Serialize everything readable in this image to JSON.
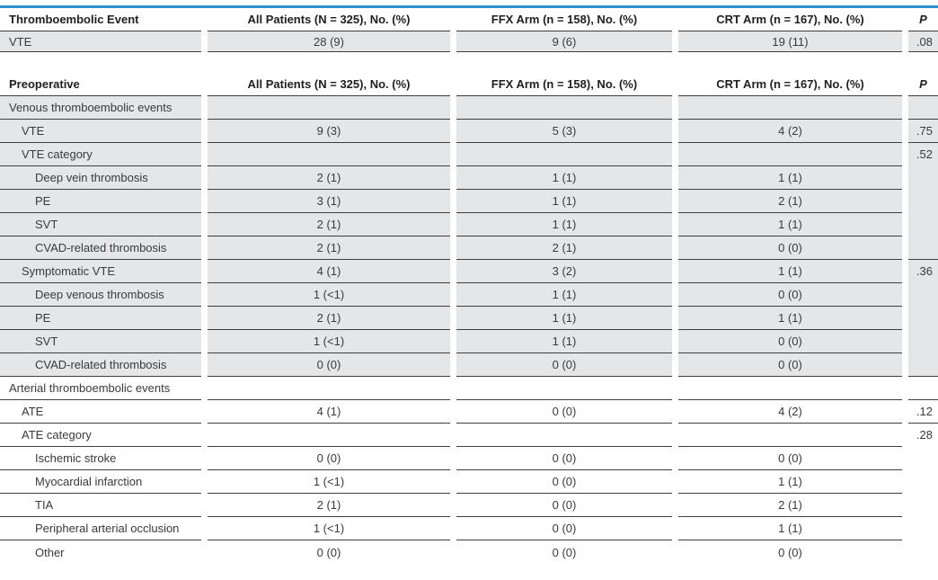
{
  "colors": {
    "accent_blue": "#2e8fd0",
    "row_shade": "#e5e6e8",
    "rule": "#3f3f3f",
    "body_text": "#3a3a3a",
    "header_text": "#1f1f1f"
  },
  "tables": [
    {
      "name": "thromboembolic-event-summary",
      "header": {
        "label": "Thromboembolic Event",
        "all": "All Patients (N = 325), No. (%)",
        "ffx": "FFX Arm (n = 158), No. (%)",
        "crt": "CRT Arm (n = 167), No. (%)",
        "p": "P"
      },
      "rows": [
        {
          "label": "VTE",
          "all": "28 (9)",
          "ffx": "9 (6)",
          "crt": "19 (11)",
          "p": ".08"
        }
      ]
    },
    {
      "name": "preoperative",
      "header": {
        "label": "Preoperative",
        "all": "All Patients (N = 325), No. (%)",
        "ffx": "FFX Arm (n = 158), No. (%)",
        "crt": "CRT Arm (n = 167), No. (%)",
        "p": "P"
      },
      "rows": [
        {
          "label": "Venous thromboembolic events",
          "all": "",
          "ffx": "",
          "crt": "",
          "p": ""
        },
        {
          "label": "VTE",
          "all": "9 (3)",
          "ffx": "5 (3)",
          "crt": "4 (2)",
          "p": ".75"
        },
        {
          "label": "VTE category",
          "all": "",
          "ffx": "",
          "crt": "",
          "p": ".52"
        },
        {
          "label": "Deep vein thrombosis",
          "all": "2 (1)",
          "ffx": "1 (1)",
          "crt": "1 (1)"
        },
        {
          "label": "PE",
          "all": "3 (1)",
          "ffx": "1 (1)",
          "crt": "2 (1)"
        },
        {
          "label": "SVT",
          "all": "2 (1)",
          "ffx": "1 (1)",
          "crt": "1 (1)"
        },
        {
          "label": "CVAD-related thrombosis",
          "all": "2 (1)",
          "ffx": "2 (1)",
          "crt": "0 (0)"
        },
        {
          "label": "Symptomatic VTE",
          "all": "4 (1)",
          "ffx": "3 (2)",
          "crt": "1 (1)",
          "p": ".36"
        },
        {
          "label": "Deep venous thrombosis",
          "all": "1 (<1)",
          "ffx": "1 (1)",
          "crt": "0 (0)"
        },
        {
          "label": "PE",
          "all": "2 (1)",
          "ffx": "1 (1)",
          "crt": "1 (1)"
        },
        {
          "label": "SVT",
          "all": "1 (<1)",
          "ffx": "1 (1)",
          "crt": "0 (0)"
        },
        {
          "label": "CVAD-related thrombosis",
          "all": "0 (0)",
          "ffx": "0 (0)",
          "crt": "0 (0)"
        },
        {
          "label": "Arterial thromboembolic events",
          "all": "",
          "ffx": "",
          "crt": "",
          "p": ""
        },
        {
          "label": "ATE",
          "all": "4 (1)",
          "ffx": "0 (0)",
          "crt": "4 (2)",
          "p": ".12"
        },
        {
          "label": "ATE category",
          "all": "",
          "ffx": "",
          "crt": "",
          "p": ".28"
        },
        {
          "label": "Ischemic stroke",
          "all": "0 (0)",
          "ffx": "0 (0)",
          "crt": "0 (0)"
        },
        {
          "label": "Myocardial infarction",
          "all": "1 (<1)",
          "ffx": "0 (0)",
          "crt": "1 (1)"
        },
        {
          "label": "TIA",
          "all": "2 (1)",
          "ffx": "0 (0)",
          "crt": "2 (1)"
        },
        {
          "label": "Peripheral arterial occlusion",
          "all": "1 (<1)",
          "ffx": "0 (0)",
          "crt": "1 (1)"
        },
        {
          "label": "Other",
          "all": "0 (0)",
          "ffx": "0 (0)",
          "crt": "0 (0)"
        }
      ]
    }
  ]
}
